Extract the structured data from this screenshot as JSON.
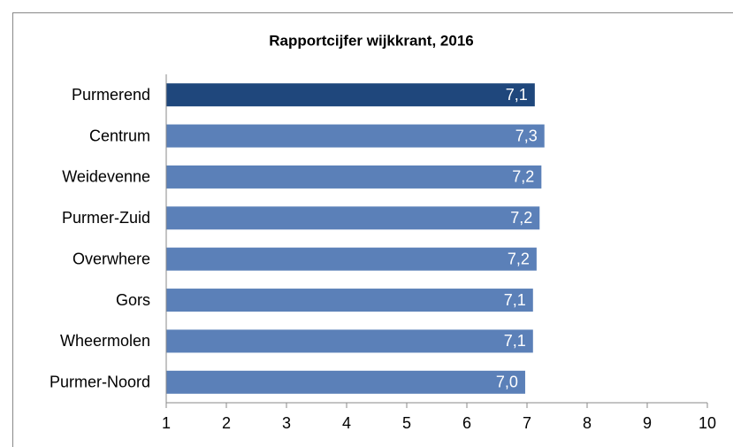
{
  "chart_data": {
    "type": "bar",
    "orientation": "horizontal",
    "title": "Rapportcijfer wijkkrant, 2016",
    "categories": [
      "Purmerend",
      "Centrum",
      "Weidevenne",
      "Purmer-Zuid",
      "Overwhere",
      "Gors",
      "Wheermolen",
      "Purmer-Noord"
    ],
    "values": [
      7.13,
      7.29,
      7.24,
      7.21,
      7.16,
      7.1,
      7.1,
      6.97
    ],
    "value_labels": [
      "7,1",
      "7,3",
      "7,2",
      "7,2",
      "7,2",
      "7,1",
      "7,1",
      "7,0"
    ],
    "colors": [
      "#1f477c",
      "#5b80b8",
      "#5b80b8",
      "#5b80b8",
      "#5b80b8",
      "#5b80b8",
      "#5b80b8",
      "#5b80b8"
    ],
    "xlim": [
      1,
      10
    ],
    "xticks": [
      1,
      2,
      3,
      4,
      5,
      6,
      7,
      8,
      9,
      10
    ]
  }
}
